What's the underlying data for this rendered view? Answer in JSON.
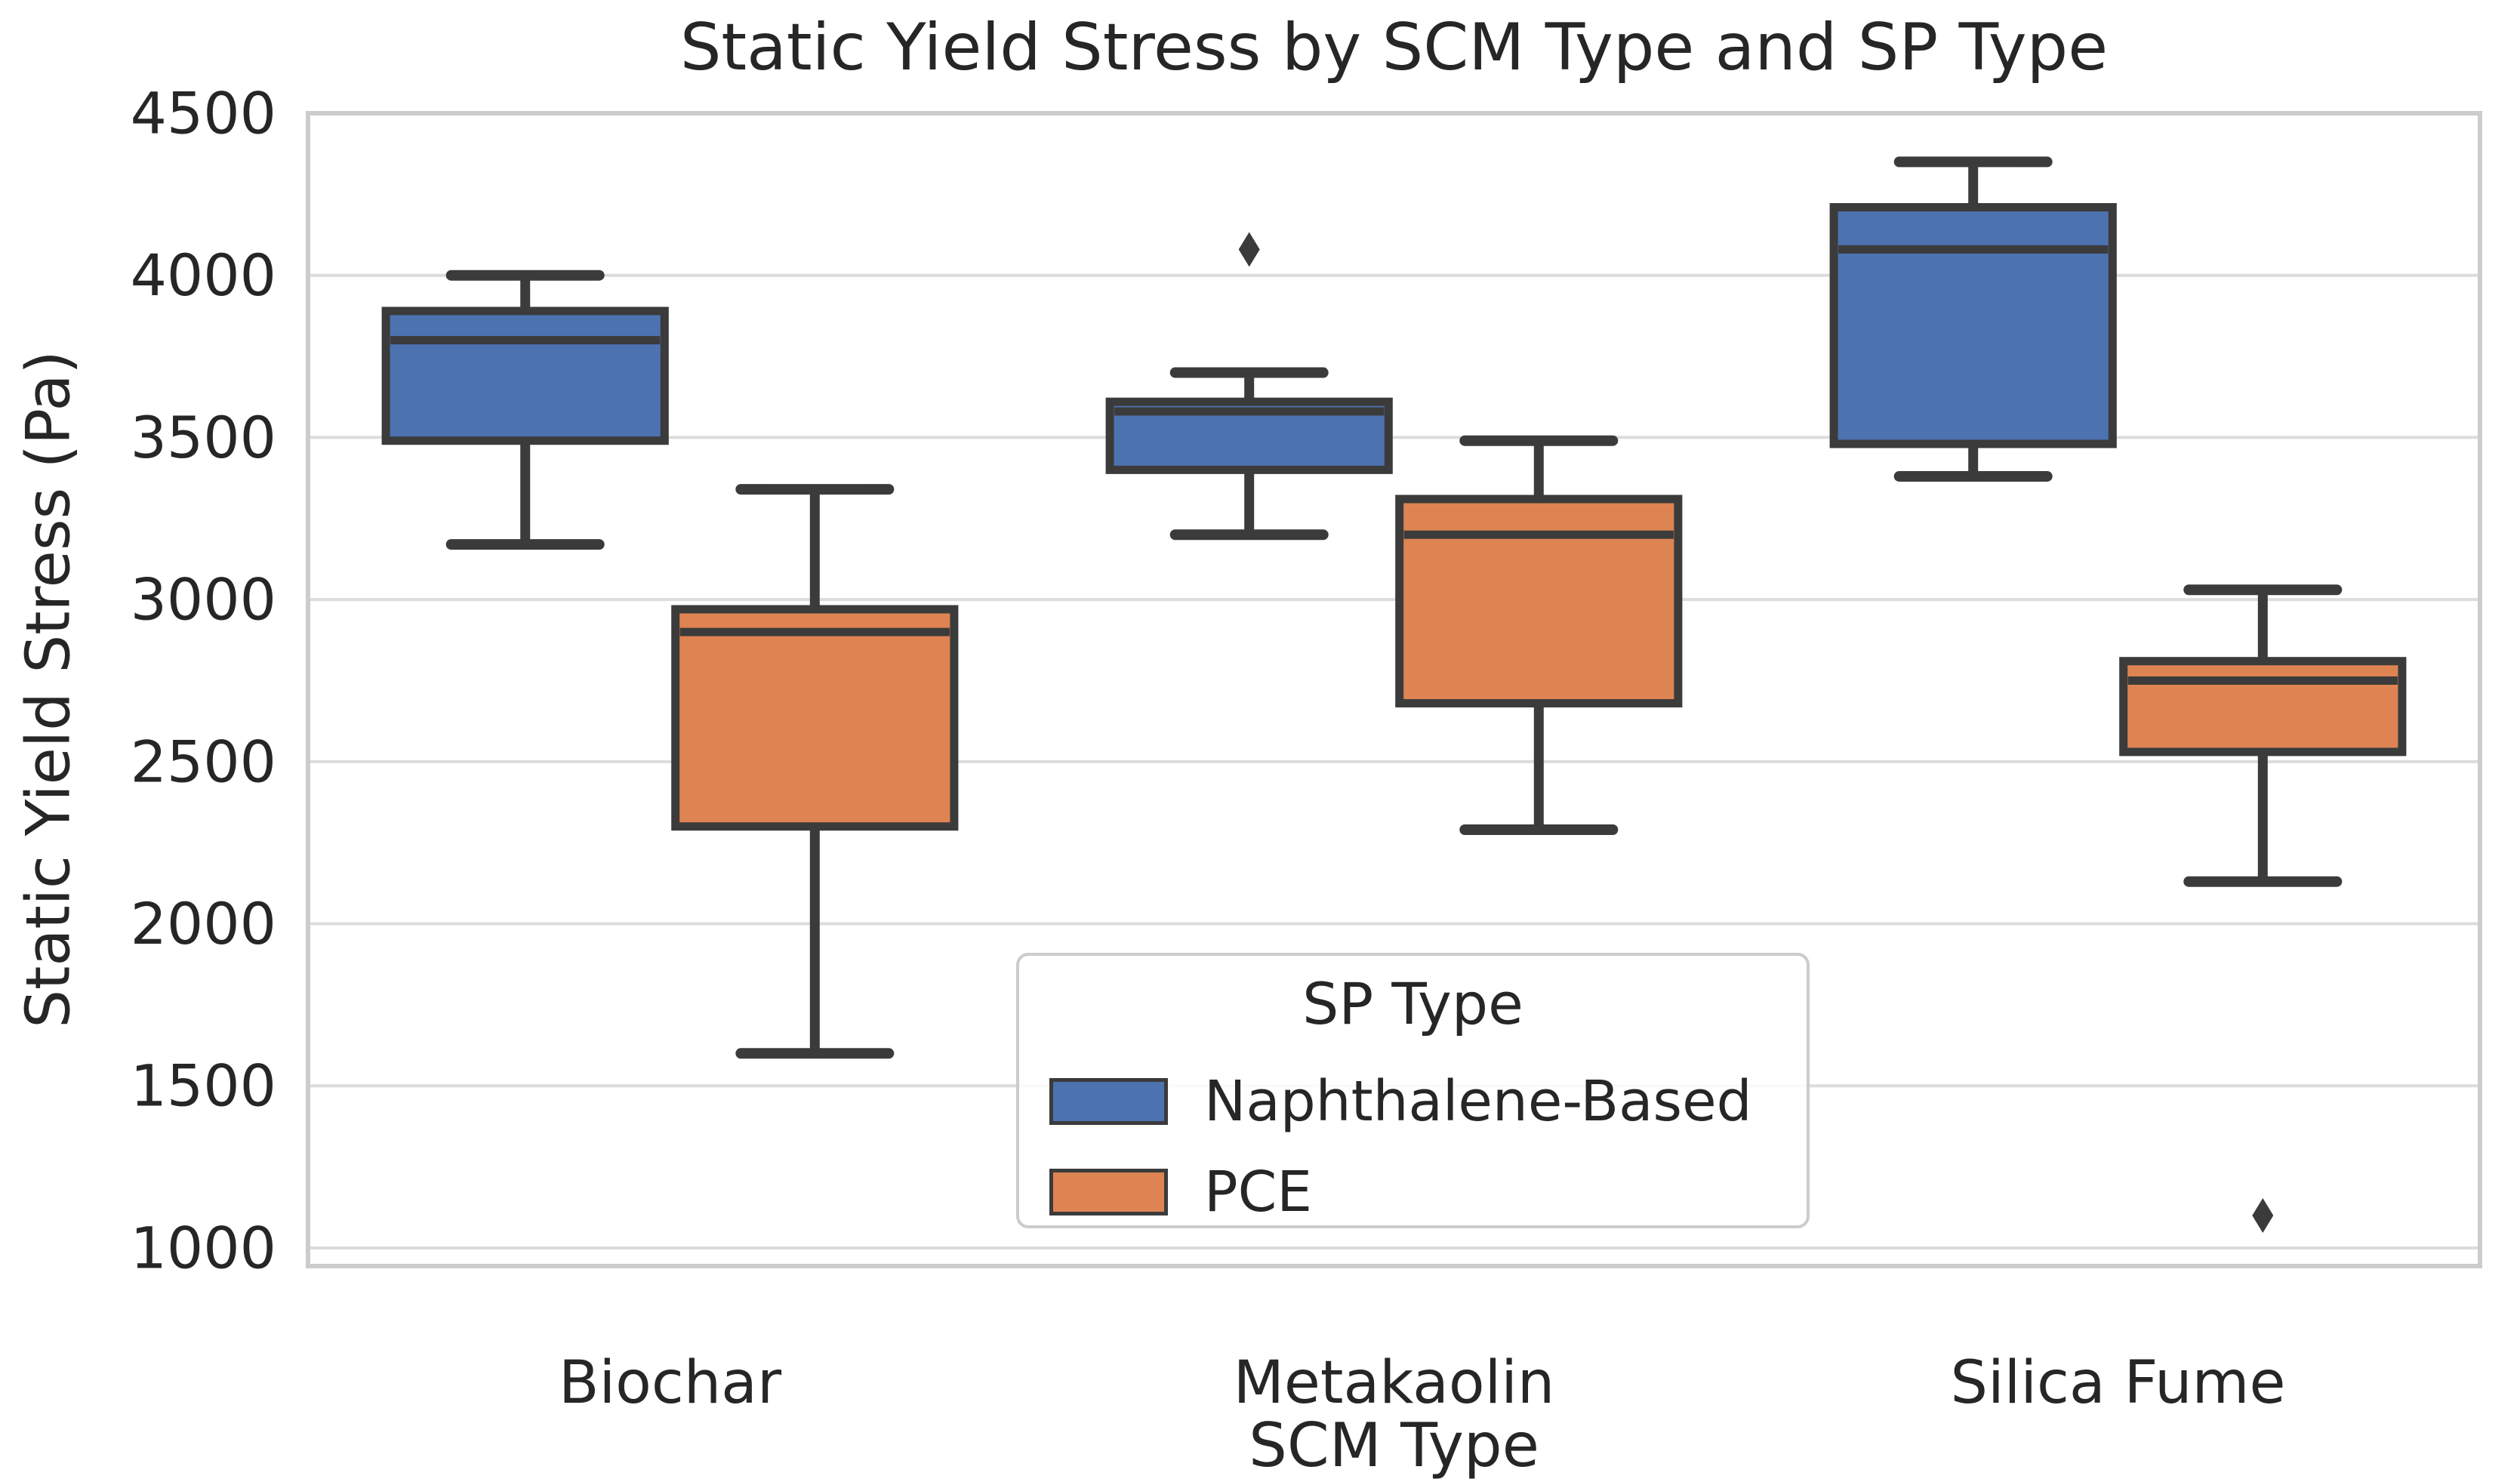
{
  "chart_data": {
    "type": "boxplot",
    "title": "Static Yield Stress by SCM Type and SP Type",
    "xlabel": "SCM Type",
    "ylabel": "Static Yield Stress (Pa)",
    "categories": [
      "Biochar",
      "Metakaolin",
      "Silica Fume"
    ],
    "yticks": [
      1000,
      1500,
      2000,
      2500,
      3000,
      3500,
      4000,
      4500
    ],
    "ylim": [
      944,
      4500
    ],
    "grid": "horizontal-gridlines-only",
    "legend": {
      "title": "SP Type",
      "position": "lower-center-inside"
    },
    "series": [
      {
        "name": "Naphthalene-Based",
        "color": "#4C72B0",
        "boxes": [
          {
            "category": "Biochar",
            "whisker_low": 3170,
            "q1": 3490,
            "median": 3800,
            "q3": 3890,
            "whisker_high": 4000,
            "outliers": []
          },
          {
            "category": "Metakaolin",
            "whisker_low": 3200,
            "q1": 3400,
            "median": 3580,
            "q3": 3610,
            "whisker_high": 3700,
            "outliers": [
              4080
            ]
          },
          {
            "category": "Silica Fume",
            "whisker_low": 3380,
            "q1": 3480,
            "median": 4080,
            "q3": 4210,
            "whisker_high": 4350,
            "outliers": []
          }
        ]
      },
      {
        "name": "PCE",
        "color": "#DD8452",
        "boxes": [
          {
            "category": "Biochar",
            "whisker_low": 1600,
            "q1": 2300,
            "median": 2900,
            "q3": 2970,
            "whisker_high": 3340,
            "outliers": []
          },
          {
            "category": "Metakaolin",
            "whisker_low": 2290,
            "q1": 2680,
            "median": 3200,
            "q3": 3310,
            "whisker_high": 3490,
            "outliers": []
          },
          {
            "category": "Silica Fume",
            "whisker_low": 2130,
            "q1": 2530,
            "median": 2750,
            "q3": 2810,
            "whisker_high": 3030,
            "outliers": [
              1100
            ]
          }
        ]
      }
    ],
    "style": {
      "box_edge_color": "#3B3B3B",
      "outlier_color": "#3B3B3B",
      "gridline_color": "#DCDCDC",
      "spine_color": "#CCCCCC",
      "text_color": "#262626",
      "background": "#FFFFFF"
    }
  }
}
